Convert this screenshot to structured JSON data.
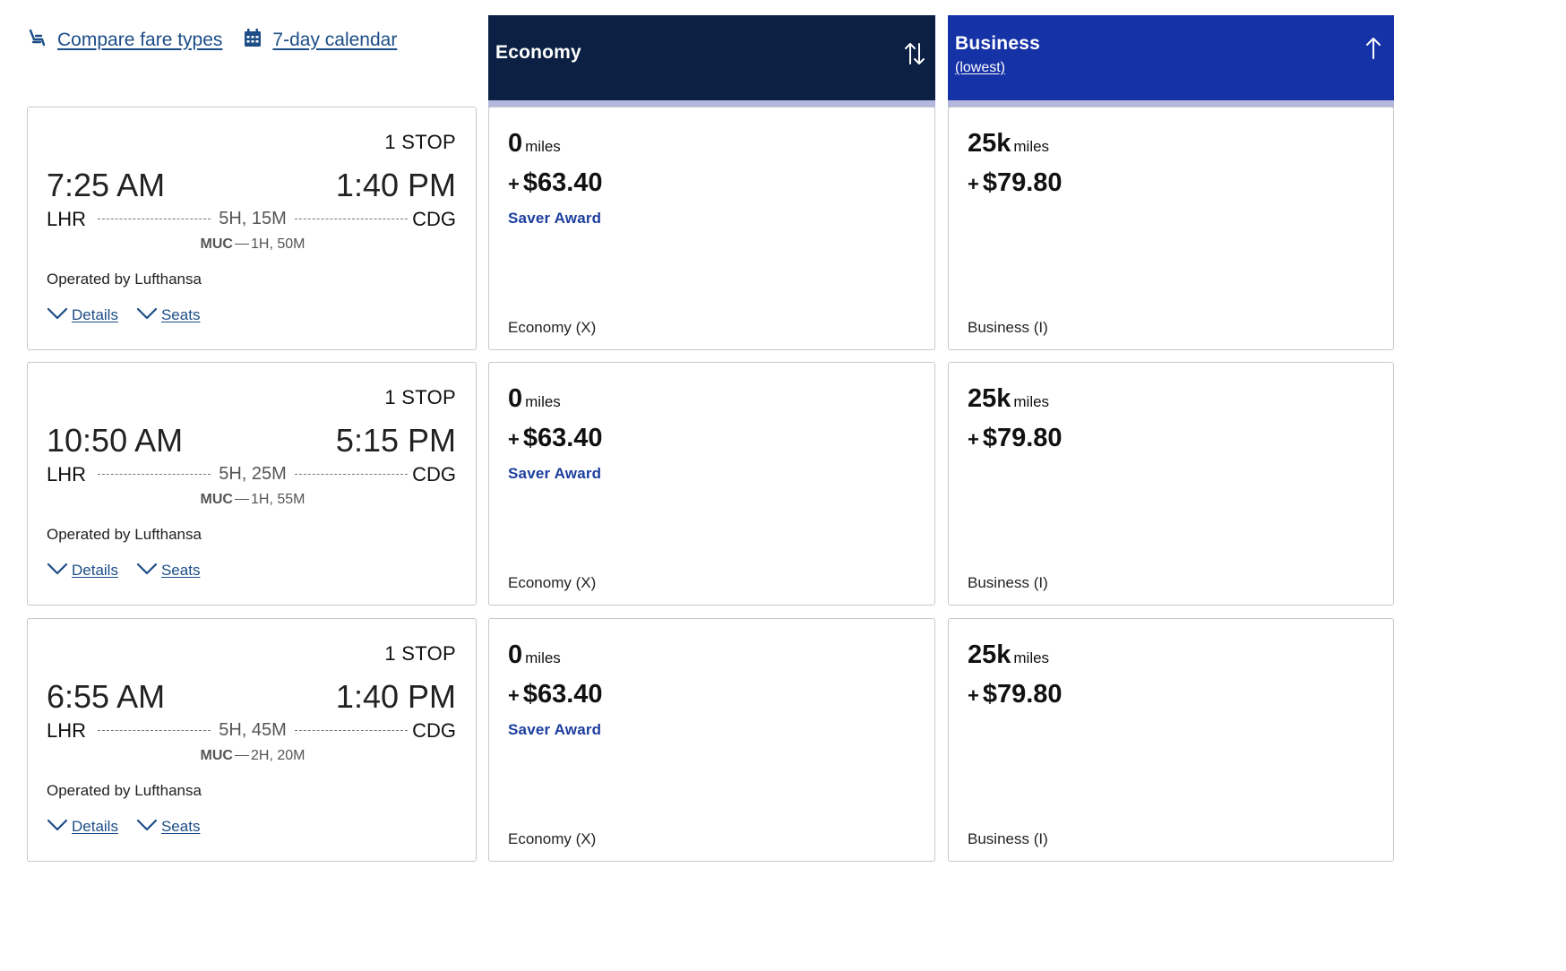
{
  "top_links": {
    "compare": "Compare fare types",
    "calendar": "7-day calendar"
  },
  "columns": {
    "economy": {
      "title": "Economy"
    },
    "business": {
      "title": "Business",
      "sub": "(lowest)"
    }
  },
  "colors": {
    "economy_header": "#0b2043",
    "business_header": "#1532a6",
    "link": "#1c4d87",
    "saver": "#1c3f9e"
  },
  "flights": [
    {
      "stops": "1 STOP",
      "depart_time": "7:25 AM",
      "arrive_time": "1:40 PM",
      "origin": "LHR",
      "destination": "CDG",
      "duration": "5H, 15M",
      "layover_airport": "MUC",
      "layover_time": "1H, 50M",
      "operated_by": "Operated by Lufthansa",
      "details": "Details",
      "seats": "Seats",
      "economy": {
        "miles": "0",
        "unit": "miles",
        "plus": "+",
        "price": "$63.40",
        "award": "Saver Award",
        "fare_class": "Economy (X)"
      },
      "business": {
        "miles": "25k",
        "unit": "miles",
        "plus": "+",
        "price": "$79.80",
        "fare_class": "Business (I)"
      }
    },
    {
      "stops": "1 STOP",
      "depart_time": "10:50 AM",
      "arrive_time": "5:15 PM",
      "origin": "LHR",
      "destination": "CDG",
      "duration": "5H, 25M",
      "layover_airport": "MUC",
      "layover_time": "1H, 55M",
      "operated_by": "Operated by Lufthansa",
      "details": "Details",
      "seats": "Seats",
      "economy": {
        "miles": "0",
        "unit": "miles",
        "plus": "+",
        "price": "$63.40",
        "award": "Saver Award",
        "fare_class": "Economy (X)"
      },
      "business": {
        "miles": "25k",
        "unit": "miles",
        "plus": "+",
        "price": "$79.80",
        "fare_class": "Business (I)"
      }
    },
    {
      "stops": "1 STOP",
      "depart_time": "6:55 AM",
      "arrive_time": "1:40 PM",
      "origin": "LHR",
      "destination": "CDG",
      "duration": "5H, 45M",
      "layover_airport": "MUC",
      "layover_time": "2H, 20M",
      "operated_by": "Operated by Lufthansa",
      "details": "Details",
      "seats": "Seats",
      "economy": {
        "miles": "0",
        "unit": "miles",
        "plus": "+",
        "price": "$63.40",
        "award": "Saver Award",
        "fare_class": "Economy (X)"
      },
      "business": {
        "miles": "25k",
        "unit": "miles",
        "plus": "+",
        "price": "$79.80",
        "fare_class": "Business (I)"
      }
    }
  ]
}
